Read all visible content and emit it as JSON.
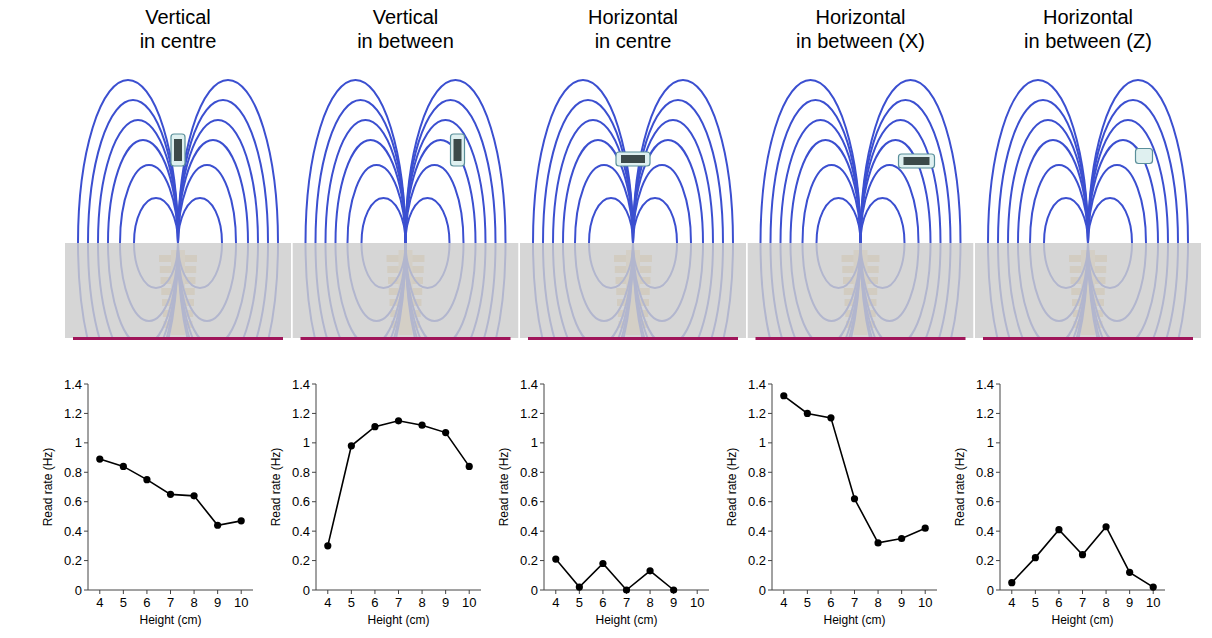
{
  "chart_data": [
    {
      "type": "line",
      "title": "Vertical in centre",
      "x_label": "Height (cm)",
      "y_label": "Read rate (Hz)",
      "x": [
        4,
        5,
        6,
        7,
        8,
        9,
        10
      ],
      "values": [
        0.89,
        0.84,
        0.75,
        0.65,
        0.64,
        0.44,
        0.47
      ],
      "color": "#000000",
      "marker": "circle",
      "grid": false,
      "xlim": [
        3.5,
        10.5
      ],
      "xticks": [
        4,
        5,
        6,
        7,
        8,
        9,
        10
      ],
      "ylim": [
        0,
        1.4
      ],
      "yticks": [
        0,
        0.2,
        0.4,
        0.6,
        0.8,
        1,
        1.2,
        1.4
      ]
    },
    {
      "type": "line",
      "title": "Vertical in between",
      "x_label": "Height (cm)",
      "y_label": "Read rate (Hz)",
      "x": [
        4,
        5,
        6,
        7,
        8,
        9,
        10
      ],
      "values": [
        0.3,
        0.98,
        1.11,
        1.15,
        1.12,
        1.07,
        0.84
      ],
      "color": "#000000",
      "marker": "circle",
      "grid": false,
      "xlim": [
        3.5,
        10.5
      ],
      "xticks": [
        4,
        5,
        6,
        7,
        8,
        9,
        10
      ],
      "ylim": [
        0,
        1.4
      ],
      "yticks": [
        0,
        0.2,
        0.4,
        0.6,
        0.8,
        1,
        1.2,
        1.4
      ]
    },
    {
      "type": "line",
      "title": "Horizontal in centre",
      "x_label": "Height (cm)",
      "y_label": "Read rate (Hz)",
      "x": [
        4,
        5,
        6,
        7,
        8,
        9
      ],
      "values": [
        0.21,
        0.02,
        0.18,
        0.0,
        0.13,
        0.0
      ],
      "color": "#000000",
      "marker": "circle",
      "grid": false,
      "xlim": [
        3.5,
        10.5
      ],
      "xticks": [
        4,
        5,
        6,
        7,
        8,
        9,
        10
      ],
      "ylim": [
        0,
        1.4
      ],
      "yticks": [
        0,
        0.2,
        0.4,
        0.6,
        0.8,
        1,
        1.2,
        1.4
      ]
    },
    {
      "type": "line",
      "title": "Horizontal in between (X)",
      "x_label": "Height (cm)",
      "y_label": "Read rate (Hz)",
      "x": [
        4,
        5,
        6,
        7,
        8,
        9,
        10
      ],
      "values": [
        1.32,
        1.2,
        1.17,
        0.62,
        0.32,
        0.35,
        0.42
      ],
      "color": "#000000",
      "marker": "circle",
      "grid": false,
      "xlim": [
        3.5,
        10.5
      ],
      "xticks": [
        4,
        5,
        6,
        7,
        8,
        9,
        10
      ],
      "ylim": [
        0,
        1.4
      ],
      "yticks": [
        0,
        0.2,
        0.4,
        0.6,
        0.8,
        1,
        1.2,
        1.4
      ]
    },
    {
      "type": "line",
      "title": "Horizontal in between (Z)",
      "x_label": "Height (cm)",
      "y_label": "Read rate (Hz)",
      "x": [
        4,
        5,
        6,
        7,
        8,
        9,
        10
      ],
      "values": [
        0.05,
        0.22,
        0.41,
        0.24,
        0.43,
        0.12,
        0.02
      ],
      "color": "#000000",
      "marker": "circle",
      "grid": false,
      "xlim": [
        3.5,
        10.5
      ],
      "xticks": [
        4,
        5,
        6,
        7,
        8,
        9,
        10
      ],
      "ylim": [
        0,
        1.4
      ],
      "yticks": [
        0,
        0.2,
        0.4,
        0.6,
        0.8,
        1,
        1.2,
        1.4
      ]
    }
  ]
}
